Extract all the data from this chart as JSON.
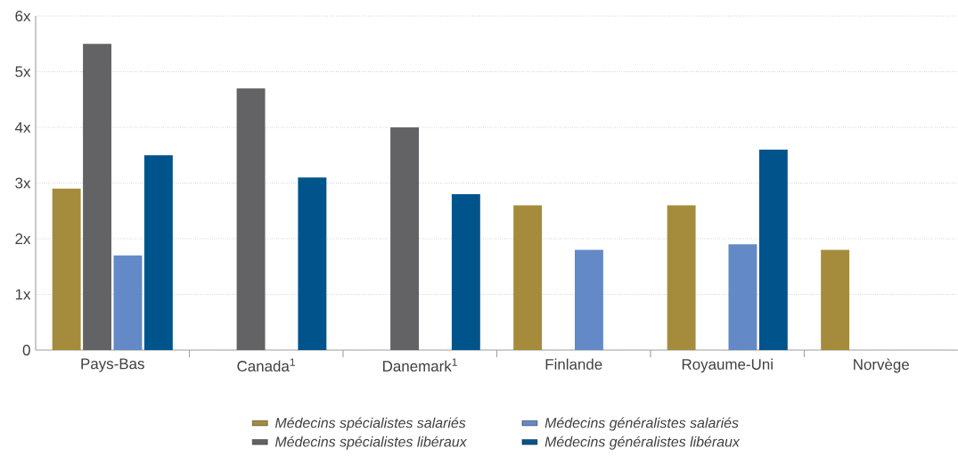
{
  "chart_data": {
    "type": "bar",
    "categories": [
      "Pays-Bas",
      "Canada$^{1}$",
      "Danemark$^{1}$",
      "Finlande",
      "Royaume-Uni",
      "Norvège"
    ],
    "series": [
      {
        "name": "Médecins spécialistes salariés",
        "color": "#a48c3c",
        "values": [
          2.9,
          null,
          null,
          2.6,
          2.6,
          1.8
        ]
      },
      {
        "name": "Médecins spécialistes libéraux",
        "color": "#636365",
        "values": [
          5.5,
          4.7,
          4.0,
          null,
          null,
          null
        ]
      },
      {
        "name": "Médecins généralistes salariés",
        "color": "#6389c6",
        "values": [
          1.7,
          null,
          null,
          1.8,
          1.9,
          null
        ]
      },
      {
        "name": "Médecins généralistes libéraux",
        "color": "#00548c",
        "values": [
          3.5,
          3.1,
          2.8,
          null,
          3.6,
          null
        ]
      }
    ],
    "ylim": [
      0,
      6
    ],
    "yticks": [
      0,
      {
        "value": 1,
        "label": "1x"
      },
      {
        "value": 2,
        "label": "2x"
      },
      {
        "value": 3,
        "label": "3x"
      },
      {
        "value": 4,
        "label": "4x"
      },
      {
        "value": 5,
        "label": "5x"
      },
      {
        "value": 6,
        "label": "6x"
      }
    ],
    "grid": "y",
    "legend": "bottom"
  }
}
